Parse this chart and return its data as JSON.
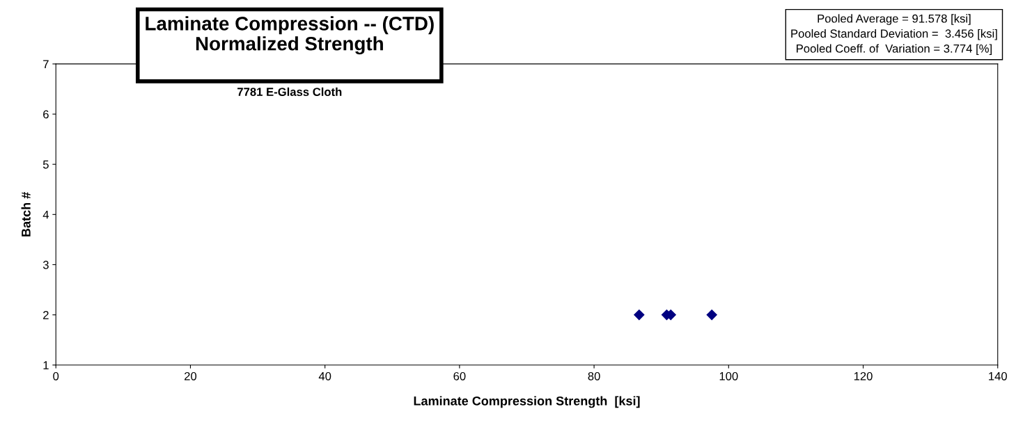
{
  "chart_data": {
    "type": "scatter",
    "title": "Laminate Compression -- (CTD)\nNormalized Strength",
    "subtitle": "7781 E-Glass Cloth",
    "xlabel": "Laminate Compression Strength  [ksi]",
    "ylabel": "Batch #",
    "annotations": [
      "Pooled Average = 91.578 [ksi]\nPooled Standard Deviation =  3.456 [ksi]\nPooled Coeff. of  Variation = 3.774 [%]"
    ],
    "series": [
      {
        "color": "#000080",
        "x": [
          86.7,
          90.8,
          91.4,
          97.5
        ],
        "values": [
          2,
          2,
          2,
          2
        ]
      }
    ],
    "xlim": [
      0,
      140
    ],
    "xticks": [
      0,
      20,
      40,
      60,
      80,
      100,
      120,
      140
    ],
    "ylim": [
      1,
      7
    ],
    "yticks": [
      1,
      2,
      3,
      4,
      5,
      6,
      7
    ],
    "marker": "diamond",
    "grid": false,
    "legend": false
  }
}
